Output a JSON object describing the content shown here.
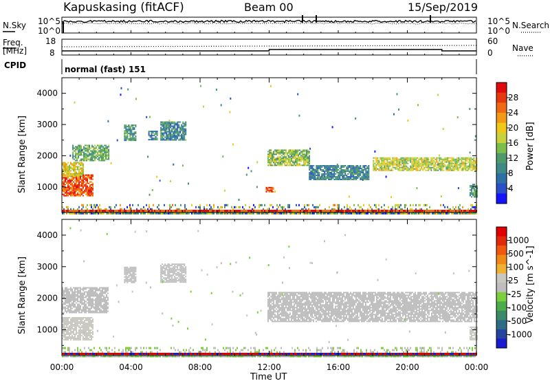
{
  "header": {
    "station": "Kapuskasing (fitACF)",
    "beam": "Beam 00",
    "date": "15/Sep/2019"
  },
  "strips": {
    "nsky_label": "N.Sky",
    "nsearch_label": "N.Search",
    "freq_label_1": "Freq.",
    "freq_label_2": "[MHz]",
    "nave_label": "Nave",
    "cpid_label": "CPID",
    "cpid_value": "normal (fast) 151",
    "noise_ticks_left": [
      "10^5",
      "10^0"
    ],
    "noise_ticks_right": [
      "10^5",
      "10^0"
    ],
    "freq_ticks_left": [
      "18",
      "8"
    ],
    "freq_ticks_right": [
      "60",
      "0"
    ]
  },
  "axes": {
    "ylabel": "Slant Range [km]",
    "xlabel": "Time UT",
    "yticks": [
      "4000",
      "3000",
      "2000",
      "1000"
    ],
    "xticks": [
      "00:00",
      "04:00",
      "08:00",
      "12:00",
      "16:00",
      "20:00",
      "00:00"
    ]
  },
  "colorbars": {
    "power": {
      "label": "Power [dB]",
      "ticks": [
        "28",
        "24",
        "20",
        "16",
        "12",
        "8",
        "4"
      ],
      "colors": [
        "#1414ff",
        "#2a4fc8",
        "#2e6fa6",
        "#3f8a86",
        "#4f9a6a",
        "#7bbf4a",
        "#c8d23c",
        "#f0c818",
        "#f29a14",
        "#f06a12",
        "#e8380e",
        "#e00a0a"
      ]
    },
    "velocity": {
      "label": "Velocity [m s^-1]",
      "ticks": [
        "1000",
        "500",
        "100",
        "25",
        "-25",
        "-100",
        "-500",
        "-1000"
      ],
      "colors": [
        "#1a1ad0",
        "#24449e",
        "#2d6b86",
        "#3c8a6a",
        "#4cab4a",
        "#7ccf3c",
        "#bebebe",
        "#c8c8c0",
        "#f0b030",
        "#f08a14",
        "#f0580e",
        "#e02a0a",
        "#e00000"
      ]
    }
  },
  "chart_data": [
    {
      "type": "heatmap",
      "title": "",
      "xlabel": "Time UT",
      "ylabel": "Slant Range [km]",
      "xlim": [
        "00:00",
        "24:00"
      ],
      "ylim": [
        180,
        4500
      ],
      "colorbar": {
        "label": "Power [dB]",
        "range": [
          0,
          30
        ]
      },
      "regions": [
        {
          "t0": 0.0,
          "t1": 1.8,
          "r0": 700,
          "r1": 1400,
          "power": 26
        },
        {
          "t0": 0.0,
          "t1": 1.2,
          "r0": 1350,
          "r1": 1800,
          "power": 18
        },
        {
          "t0": 0.6,
          "t1": 2.7,
          "r0": 1850,
          "r1": 2350,
          "power": 12
        },
        {
          "t0": 3.6,
          "t1": 4.3,
          "r0": 2500,
          "r1": 3000,
          "power": 10
        },
        {
          "t0": 5.0,
          "t1": 5.5,
          "r0": 2500,
          "r1": 2800,
          "power": 8
        },
        {
          "t0": 5.7,
          "t1": 7.2,
          "r0": 2500,
          "r1": 3100,
          "power": 8
        },
        {
          "t0": 11.9,
          "t1": 14.3,
          "r0": 1700,
          "r1": 2200,
          "power": 14
        },
        {
          "t0": 14.3,
          "t1": 17.8,
          "r0": 1250,
          "r1": 1700,
          "power": 8
        },
        {
          "t0": 18.0,
          "t1": 24.0,
          "r0": 1550,
          "r1": 1950,
          "power": 16
        },
        {
          "t0": 11.8,
          "t1": 12.2,
          "r0": 850,
          "r1": 1000,
          "power": 26
        },
        {
          "t0": 23.6,
          "t1": 24.0,
          "r0": 700,
          "r1": 1100,
          "power": 10
        },
        {
          "t0": 0.0,
          "t1": 24.0,
          "r0": 180,
          "r1": 450,
          "power": 10
        }
      ]
    },
    {
      "type": "heatmap",
      "title": "",
      "xlabel": "Time UT",
      "ylabel": "Slant Range [km]",
      "xlim": [
        "00:00",
        "24:00"
      ],
      "ylim": [
        180,
        4500
      ],
      "colorbar": {
        "label": "Velocity [m s^-1]",
        "range": [
          -1000,
          1000
        ]
      },
      "regions": [
        {
          "t0": 0.0,
          "t1": 1.8,
          "r0": 700,
          "r1": 1400,
          "velocity": -150
        },
        {
          "t0": 0.0,
          "t1": 2.7,
          "r0": 1550,
          "r1": 2350,
          "velocity": 0
        },
        {
          "t0": 3.6,
          "t1": 4.3,
          "r0": 2500,
          "r1": 3000,
          "velocity": 0
        },
        {
          "t0": 5.7,
          "t1": 7.2,
          "r0": 2500,
          "r1": 3100,
          "velocity": 0
        },
        {
          "t0": 11.9,
          "t1": 24.0,
          "r0": 1250,
          "r1": 2200,
          "velocity": 0
        },
        {
          "t0": 23.6,
          "t1": 24.0,
          "r0": 700,
          "r1": 1100,
          "velocity": -150
        },
        {
          "t0": 0.0,
          "t1": 24.0,
          "r0": 180,
          "r1": 450,
          "velocity": 80
        }
      ]
    }
  ]
}
